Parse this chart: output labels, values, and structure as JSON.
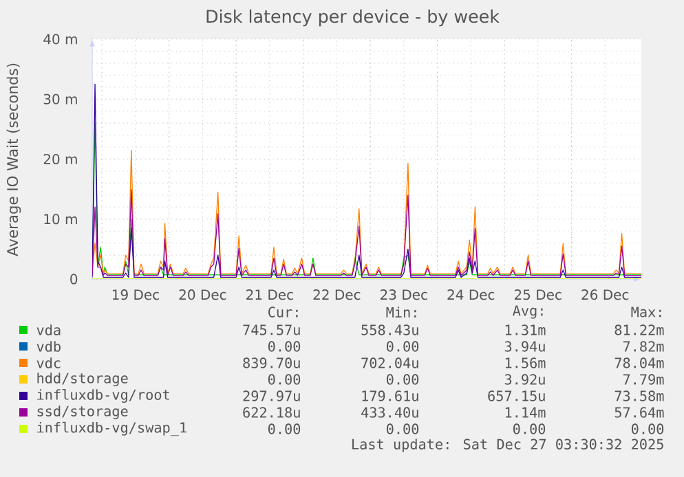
{
  "chart_data": {
    "type": "line",
    "title": "Disk latency per device - by week",
    "ylabel": "Average IO Wait (seconds)",
    "xlim": [
      "2025-12-18T20:30",
      "2025-12-27T01:00"
    ],
    "xticks": [
      {
        "value": "2025-12-19T00:00",
        "label": null
      },
      {
        "value": "2025-12-19T12:00",
        "label": "19 Dec"
      },
      {
        "value": "2025-12-20T00:00",
        "label": null
      },
      {
        "value": "2025-12-20T12:00",
        "label": "20 Dec"
      },
      {
        "value": "2025-12-21T00:00",
        "label": null
      },
      {
        "value": "2025-12-21T12:00",
        "label": "21 Dec"
      },
      {
        "value": "2025-12-22T00:00",
        "label": null
      },
      {
        "value": "2025-12-22T12:00",
        "label": "22 Dec"
      },
      {
        "value": "2025-12-23T00:00",
        "label": null
      },
      {
        "value": "2025-12-23T12:00",
        "label": "23 Dec"
      },
      {
        "value": "2025-12-24T00:00",
        "label": null
      },
      {
        "value": "2025-12-24T12:00",
        "label": "24 Dec"
      },
      {
        "value": "2025-12-25T00:00",
        "label": null
      },
      {
        "value": "2025-12-25T12:00",
        "label": "25 Dec"
      },
      {
        "value": "2025-12-26T00:00",
        "label": null
      },
      {
        "value": "2025-12-26T12:00",
        "label": "26 Dec"
      }
    ],
    "ylim": [
      0,
      40
    ],
    "yticks": [
      0,
      {
        "value": 10,
        "label": "10 m"
      },
      {
        "value": 20,
        "label": "20 m"
      },
      {
        "value": 30,
        "label": "30 m"
      },
      {
        "value": 40,
        "label": "40 m"
      }
    ],
    "grid": true,
    "legend": "bottom",
    "x": [
      "2025-12-18T20:30",
      "2025-12-18T21:30",
      "2025-12-18T22:30",
      "2025-12-18T23:30",
      "2025-12-19T00:30",
      "2025-12-19T01:00",
      "2025-12-19T02:00",
      "2025-12-19T07:30",
      "2025-12-19T08:30",
      "2025-12-19T09:30",
      "2025-12-19T10:30",
      "2025-12-19T11:30",
      "2025-12-19T13:00",
      "2025-12-19T14:00",
      "2025-12-19T15:00",
      "2025-12-19T20:00",
      "2025-12-19T21:00",
      "2025-12-19T22:00",
      "2025-12-19T22:30",
      "2025-12-19T23:30",
      "2025-12-20T00:30",
      "2025-12-20T01:30",
      "2025-12-20T05:00",
      "2025-12-20T06:00",
      "2025-12-20T07:00",
      "2025-12-20T14:00",
      "2025-12-20T15:00",
      "2025-12-20T16:00",
      "2025-12-20T17:30",
      "2025-12-20T18:30",
      "2025-12-21T00:00",
      "2025-12-21T01:00",
      "2025-12-21T02:00",
      "2025-12-21T03:30",
      "2025-12-21T04:30",
      "2025-12-21T12:30",
      "2025-12-21T13:30",
      "2025-12-21T14:30",
      "2025-12-21T16:00",
      "2025-12-21T17:00",
      "2025-12-21T18:00",
      "2025-12-21T20:00",
      "2025-12-21T21:00",
      "2025-12-21T22:00",
      "2025-12-21T23:30",
      "2025-12-22T00:30",
      "2025-12-22T02:30",
      "2025-12-22T03:30",
      "2025-12-22T04:30",
      "2025-12-22T13:30",
      "2025-12-22T14:30",
      "2025-12-22T15:30",
      "2025-12-22T17:30",
      "2025-12-22T18:30",
      "2025-12-22T20:00",
      "2025-12-22T21:00",
      "2025-12-22T22:30",
      "2025-12-22T23:30",
      "2025-12-23T02:00",
      "2025-12-23T03:00",
      "2025-12-23T04:00",
      "2025-12-23T11:00",
      "2025-12-23T12:00",
      "2025-12-23T13:30",
      "2025-12-23T14:30",
      "2025-12-23T19:30",
      "2025-12-23T20:30",
      "2025-12-23T21:30",
      "2025-12-24T06:30",
      "2025-12-24T07:30",
      "2025-12-24T08:30",
      "2025-12-24T10:30",
      "2025-12-24T11:30",
      "2025-12-24T12:30",
      "2025-12-24T13:30",
      "2025-12-24T14:30",
      "2025-12-24T18:00",
      "2025-12-24T19:00",
      "2025-12-24T20:00",
      "2025-12-24T21:30",
      "2025-12-24T22:30",
      "2025-12-25T02:00",
      "2025-12-25T03:00",
      "2025-12-25T04:00",
      "2025-12-25T07:30",
      "2025-12-25T08:30",
      "2025-12-25T09:30",
      "2025-12-25T20:00",
      "2025-12-25T21:00",
      "2025-12-25T22:00",
      "2025-12-26T15:00",
      "2025-12-26T16:00",
      "2025-12-26T17:00",
      "2025-12-26T18:00",
      "2025-12-26T19:00",
      "2025-12-27T01:00"
    ],
    "series": [
      {
        "name": "vda",
        "color": "#00cc00",
        "values": [
          0.7,
          26,
          2,
          5.3,
          0.7,
          2,
          0.7,
          0.7,
          3,
          0.7,
          10,
          0.7,
          0.7,
          0.7,
          0.7,
          0.7,
          2,
          0.7,
          0.7,
          0.7,
          0.7,
          0.7,
          0.7,
          0.7,
          0.7,
          0.7,
          0.7,
          0.7,
          0.7,
          0.7,
          0.7,
          0.7,
          0.7,
          0.7,
          0.7,
          0.7,
          0.7,
          0.7,
          0.7,
          0.7,
          0.7,
          0.7,
          0.7,
          0.7,
          0.7,
          0.7,
          0.7,
          3.5,
          0.7,
          0.7,
          0.7,
          0.7,
          0.7,
          3.5,
          0.7,
          0.7,
          0.7,
          0.7,
          0.7,
          0.7,
          0.7,
          0.7,
          3.5,
          4,
          0.7,
          0.7,
          0.7,
          0.7,
          0.7,
          0.7,
          0.7,
          0.7,
          3,
          0.7,
          0.7,
          0.7,
          0.7,
          0.7,
          0.7,
          0.7,
          0.7,
          0.7,
          0.7,
          0.7,
          0.7,
          0.7,
          0.7,
          0.7,
          0.7,
          0.7,
          0.7,
          0.7,
          0.7,
          0.7,
          0.7,
          0.7
        ]
      },
      {
        "name": "vdb",
        "color": "#0066b3",
        "values": [
          null,
          null,
          null,
          null,
          null,
          null,
          null,
          null,
          null,
          null,
          null,
          null,
          null,
          null,
          null,
          null,
          null,
          null,
          null,
          null,
          null,
          null,
          null,
          null,
          null,
          null,
          null,
          null,
          null,
          null,
          null,
          null,
          null,
          null,
          null,
          null,
          null,
          null,
          null,
          null,
          null,
          null,
          null,
          null,
          null,
          null,
          null,
          null,
          null,
          null,
          null,
          null,
          null,
          null,
          null,
          null,
          null,
          null,
          null,
          null,
          null,
          null,
          null,
          null,
          null,
          null,
          null,
          null,
          null,
          null,
          null,
          null,
          null,
          null,
          null,
          null,
          null,
          null,
          null,
          null,
          null,
          null,
          null,
          null,
          null,
          null,
          null,
          null,
          null,
          null,
          null,
          null,
          null,
          null,
          null,
          null
        ]
      },
      {
        "name": "vdc",
        "color": "#ff8000",
        "values": [
          0.9,
          6,
          2,
          4,
          0.9,
          1.5,
          0.9,
          0.9,
          4,
          3,
          21.5,
          0.9,
          0.9,
          2.5,
          0.9,
          0.9,
          3,
          2,
          9.3,
          0.9,
          2.5,
          0.9,
          0.9,
          1.8,
          0.9,
          0.9,
          2.5,
          3.5,
          14.5,
          0.9,
          0.9,
          7.2,
          0.9,
          2.3,
          0.9,
          0.9,
          5.3,
          0.9,
          0.9,
          3.3,
          0.9,
          0.9,
          1.8,
          0.9,
          3.5,
          0.9,
          0.9,
          2.5,
          0.9,
          0.9,
          1.5,
          0.9,
          0.9,
          3,
          11.7,
          0.9,
          2.5,
          0.9,
          0.9,
          2,
          0.9,
          0.9,
          2.5,
          19.3,
          0.9,
          0.9,
          2.3,
          0.9,
          0.9,
          3,
          0.9,
          2,
          6.5,
          2,
          12,
          0.9,
          0.9,
          1.8,
          0.9,
          2,
          0.9,
          0.9,
          2,
          0.9,
          0.9,
          4,
          0.9,
          0.9,
          5.9,
          0.9,
          0.9,
          1.5,
          1,
          7.6,
          0.9,
          0.9
        ]
      },
      {
        "name": "hdd/storage",
        "color": "#ffcc00",
        "values": [
          null,
          null,
          null,
          null,
          null,
          null,
          null,
          null,
          null,
          null,
          null,
          null,
          null,
          null,
          null,
          null,
          null,
          null,
          null,
          null,
          null,
          null,
          null,
          null,
          null,
          null,
          null,
          null,
          null,
          null,
          null,
          null,
          null,
          null,
          null,
          null,
          null,
          null,
          null,
          null,
          null,
          null,
          null,
          null,
          null,
          null,
          null,
          null,
          null,
          null,
          null,
          null,
          null,
          null,
          null,
          null,
          null,
          null,
          null,
          null,
          null,
          null,
          null,
          null,
          null,
          null,
          null,
          null,
          null,
          null,
          null,
          null,
          null,
          null,
          null,
          null,
          null,
          null,
          null,
          null,
          null,
          null,
          null,
          null,
          null,
          null,
          null,
          null,
          null,
          null,
          null,
          null,
          null,
          null,
          null,
          null
        ]
      },
      {
        "name": "influxdb-vg/root",
        "color": "#330099",
        "values": [
          0.3,
          32.5,
          3,
          2,
          0.3,
          0.3,
          0.3,
          0.3,
          1,
          0.3,
          8.5,
          0.3,
          0.3,
          0.3,
          0.3,
          0.3,
          0.3,
          0.3,
          3,
          0.3,
          0.3,
          0.3,
          0.3,
          0.3,
          0.3,
          0.3,
          0.3,
          0.3,
          4,
          0.3,
          0.3,
          2,
          0.3,
          0.3,
          0.3,
          0.3,
          1.5,
          0.3,
          0.3,
          0.3,
          0.3,
          0.3,
          0.3,
          0.3,
          0.3,
          0.3,
          0.3,
          0.3,
          0.3,
          0.3,
          0.3,
          0.3,
          0.3,
          0.3,
          4,
          0.3,
          0.3,
          0.3,
          0.3,
          0.3,
          0.3,
          0.3,
          1,
          5,
          0.3,
          0.3,
          0.3,
          0.3,
          0.3,
          1.5,
          0.3,
          1,
          3.5,
          1,
          3,
          0.3,
          0.3,
          0.3,
          0.3,
          0.3,
          0.3,
          0.3,
          0.3,
          0.3,
          0.3,
          0.3,
          0.3,
          0.3,
          1.5,
          0.3,
          0.3,
          0.3,
          0.3,
          2,
          0.3,
          0.3
        ]
      },
      {
        "name": "ssd/storage",
        "color": "#990099",
        "values": [
          0.6,
          12,
          2,
          2,
          0.6,
          1,
          0.6,
          0.6,
          2.5,
          2,
          14.9,
          0.6,
          0.6,
          1.5,
          0.6,
          0.6,
          2,
          1.5,
          6.7,
          0.6,
          2,
          0.6,
          0.6,
          1.2,
          0.6,
          0.6,
          2,
          2.5,
          10.9,
          0.6,
          0.6,
          5.1,
          0.6,
          1.5,
          0.6,
          0.6,
          3.5,
          0.6,
          0.6,
          2.5,
          0.6,
          0.6,
          1.2,
          0.6,
          2.5,
          0.6,
          0.6,
          2.5,
          0.6,
          0.6,
          1,
          0.6,
          0.6,
          2.5,
          8.8,
          0.6,
          2,
          0.6,
          0.6,
          1.5,
          0.6,
          0.6,
          2.5,
          14,
          0.6,
          0.6,
          1.8,
          0.6,
          0.6,
          2,
          0.6,
          1.5,
          4.5,
          1.5,
          8.4,
          0.6,
          0.6,
          1.2,
          0.6,
          1.5,
          0.6,
          0.6,
          1.5,
          0.6,
          0.6,
          3,
          0.6,
          0.6,
          4.2,
          0.6,
          0.6,
          1,
          0.8,
          5.5,
          0.6,
          0.6
        ]
      },
      {
        "name": "influxdb-vg/swap_1",
        "color": "#ccff00",
        "values": [
          0,
          0,
          0,
          0,
          0,
          0,
          0,
          0,
          0,
          0,
          0,
          0,
          0,
          0,
          0,
          0,
          0,
          0,
          0,
          0,
          0,
          0,
          0,
          0,
          0,
          0,
          0,
          0,
          0,
          0,
          0,
          0,
          0,
          0,
          0,
          0,
          0,
          0,
          0,
          0,
          0,
          0,
          0,
          0,
          0,
          0,
          0,
          0,
          0,
          0,
          0,
          0,
          0,
          0,
          0,
          0,
          0,
          0,
          0,
          0,
          0,
          0,
          0,
          0,
          0,
          0,
          0,
          0,
          0,
          0,
          0,
          0,
          0,
          0,
          0,
          0,
          0,
          0,
          0,
          0,
          0,
          0,
          0,
          0,
          0,
          0,
          0,
          0,
          0,
          0,
          0,
          0,
          0,
          0,
          0,
          0
        ]
      }
    ],
    "annotations": [
      "Cur:",
      "Min:",
      "Avg:",
      "Max:",
      "745.57u",
      "558.43u",
      "1.31m",
      "81.22m",
      "0.00",
      "0.00",
      "3.94u",
      "7.82m",
      "839.70u",
      "702.04u",
      "1.56m",
      "78.04m",
      "0.00",
      "0.00",
      "3.92u",
      "7.79m",
      "297.97u",
      "179.61u",
      "657.15u",
      "73.58m",
      "622.18u",
      "433.40u",
      "1.14m",
      "57.64m",
      "0.00",
      "0.00",
      "0.00",
      "0.00",
      "Last update: Sat Dec 27 03:30:32 2025"
    ]
  }
}
